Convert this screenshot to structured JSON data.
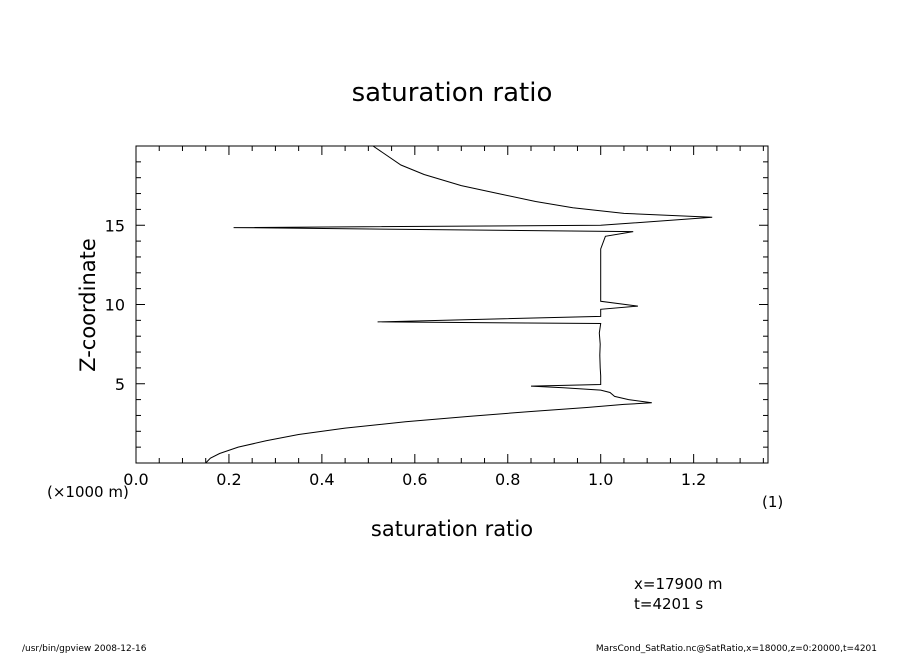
{
  "chart_data": {
    "type": "line",
    "title": "saturation ratio",
    "xlabel": "saturation ratio",
    "x_units": "(1)",
    "ylabel": "Z-coordinate",
    "y_units": "(×1000 m)",
    "xlim": [
      0.0,
      1.36
    ],
    "ylim": [
      0,
      20
    ],
    "x_ticks": [
      0.0,
      0.2,
      0.4,
      0.6,
      0.8,
      1.0,
      1.2
    ],
    "x_tick_labels": [
      "0.0",
      "0.2",
      "0.4",
      "0.6",
      "0.8",
      "1.0",
      "1.2"
    ],
    "y_ticks": [
      5,
      10,
      15
    ],
    "y_tick_labels": [
      "5",
      "10",
      "15"
    ],
    "grid": false,
    "series": [
      {
        "points": [
          [
            0.15,
            0.0
          ],
          [
            0.16,
            0.3
          ],
          [
            0.18,
            0.6
          ],
          [
            0.22,
            1.0
          ],
          [
            0.28,
            1.4
          ],
          [
            0.35,
            1.8
          ],
          [
            0.45,
            2.2
          ],
          [
            0.58,
            2.6
          ],
          [
            0.72,
            2.95
          ],
          [
            0.85,
            3.25
          ],
          [
            0.97,
            3.5
          ],
          [
            1.05,
            3.7
          ],
          [
            1.11,
            3.8
          ],
          [
            1.06,
            4.0
          ],
          [
            1.03,
            4.2
          ],
          [
            1.02,
            4.45
          ],
          [
            1.0,
            4.6
          ],
          [
            0.92,
            4.75
          ],
          [
            0.85,
            4.85
          ],
          [
            1.0,
            4.95
          ],
          [
            1.0,
            5.5
          ],
          [
            0.999,
            6.0
          ],
          [
            0.998,
            6.8
          ],
          [
            0.999,
            7.5
          ],
          [
            0.997,
            8.2
          ],
          [
            1.0,
            8.8
          ],
          [
            0.52,
            8.9
          ],
          [
            1.0,
            9.25
          ],
          [
            1.0,
            9.7
          ],
          [
            1.08,
            9.9
          ],
          [
            1.0,
            10.2
          ],
          [
            1.0,
            11.0
          ],
          [
            1.0,
            12.0
          ],
          [
            1.0,
            13.5
          ],
          [
            1.01,
            14.3
          ],
          [
            1.07,
            14.6
          ],
          [
            0.21,
            14.85
          ],
          [
            1.0,
            15.0
          ],
          [
            1.24,
            15.5
          ],
          [
            1.05,
            15.75
          ],
          [
            0.94,
            16.1
          ],
          [
            0.86,
            16.5
          ],
          [
            0.78,
            17.0
          ],
          [
            0.7,
            17.5
          ],
          [
            0.62,
            18.2
          ],
          [
            0.57,
            18.8
          ],
          [
            0.51,
            20.0
          ]
        ]
      }
    ]
  },
  "info": {
    "x_position": "x=17900  m",
    "time": "t=4201  s"
  },
  "footer": {
    "left": "/usr/bin/gpview   2008-12-16",
    "right": "MarsCond_SatRatio.nc@SatRatio,x=18000,z=0:20000,t=4201"
  }
}
